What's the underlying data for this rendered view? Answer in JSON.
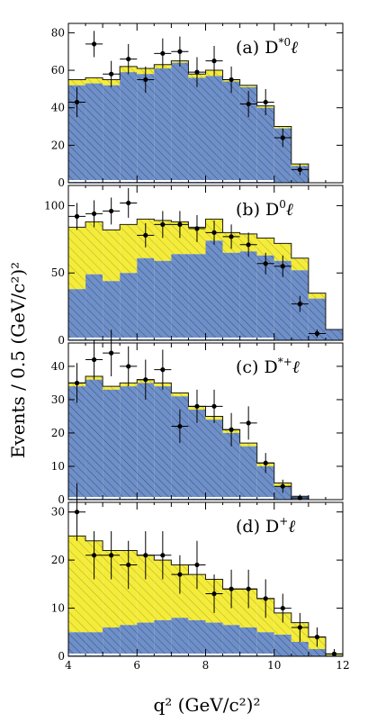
{
  "figure": {
    "ylabel": "Events / 0.5 (GeV/c²)²",
    "xlabel": "q² (GeV/c²)²",
    "colors": {
      "blue_fill": "#6f8fc8",
      "yellow_fill": "#f4ec3a",
      "hatch_line": "#34507a",
      "background": "#ffffff",
      "frame": "#000000"
    }
  },
  "chart_data": [
    {
      "type": "bar",
      "label": "(a) D*⁰ℓ",
      "label_main": "(a) D",
      "label_sup": "*0",
      "label_tail": "ℓ",
      "xlim": [
        4,
        12
      ],
      "ylim": [
        0,
        85
      ],
      "yticks": [
        0,
        20,
        40,
        60,
        80
      ],
      "bin_edges": [
        4.0,
        4.5,
        5.0,
        5.5,
        6.0,
        6.5,
        7.0,
        7.5,
        8.0,
        8.5,
        9.0,
        9.5,
        10.0,
        10.5,
        11.0
      ],
      "blue": [
        52,
        53,
        52,
        59,
        58,
        61,
        64,
        56,
        57,
        54,
        51,
        40,
        29,
        9
      ],
      "yellow_top": [
        55,
        56,
        55,
        62,
        61,
        63,
        65,
        58,
        60,
        55,
        52,
        41,
        30,
        10
      ],
      "data_points": [
        {
          "x": 4.25,
          "y": 43,
          "err": 8
        },
        {
          "x": 4.75,
          "y": 74,
          "err": 7
        },
        {
          "x": 5.25,
          "y": 58,
          "err": 7
        },
        {
          "x": 5.75,
          "y": 66,
          "err": 8
        },
        {
          "x": 6.25,
          "y": 55,
          "err": 7
        },
        {
          "x": 6.75,
          "y": 69,
          "err": 8
        },
        {
          "x": 7.25,
          "y": 70,
          "err": 8
        },
        {
          "x": 7.75,
          "y": 59,
          "err": 8
        },
        {
          "x": 8.25,
          "y": 65,
          "err": 8
        },
        {
          "x": 8.75,
          "y": 55,
          "err": 7
        },
        {
          "x": 9.25,
          "y": 42,
          "err": 7
        },
        {
          "x": 9.75,
          "y": 43,
          "err": 7
        },
        {
          "x": 10.25,
          "y": 24,
          "err": 5
        },
        {
          "x": 10.75,
          "y": 7,
          "err": 3
        }
      ]
    },
    {
      "type": "bar",
      "label": "(b) D⁰ℓ",
      "label_main": "(b) D",
      "label_sup": "0",
      "label_tail": "ℓ",
      "xlim": [
        4,
        12
      ],
      "ylim": [
        0,
        115
      ],
      "yticks": [
        0,
        50,
        100
      ],
      "bin_edges": [
        4.0,
        4.5,
        5.0,
        5.5,
        6.0,
        6.5,
        7.0,
        7.5,
        8.0,
        8.5,
        9.0,
        9.5,
        10.0,
        10.5,
        11.0,
        11.5,
        12.0
      ],
      "blue": [
        38,
        49,
        44,
        50,
        61,
        59,
        64,
        64,
        74,
        65,
        66,
        63,
        59,
        52,
        31,
        8
      ],
      "yellow_top": [
        84,
        88,
        82,
        86,
        90,
        89,
        88,
        84,
        90,
        80,
        79,
        76,
        72,
        61,
        35,
        8
      ],
      "data_points": [
        {
          "x": 4.25,
          "y": 92,
          "err": 10
        },
        {
          "x": 4.75,
          "y": 94,
          "err": 10
        },
        {
          "x": 5.25,
          "y": 96,
          "err": 10
        },
        {
          "x": 5.75,
          "y": 102,
          "err": 11
        },
        {
          "x": 6.25,
          "y": 78,
          "err": 9
        },
        {
          "x": 6.75,
          "y": 86,
          "err": 10
        },
        {
          "x": 7.25,
          "y": 86,
          "err": 10
        },
        {
          "x": 7.75,
          "y": 83,
          "err": 10
        },
        {
          "x": 8.25,
          "y": 80,
          "err": 9
        },
        {
          "x": 8.75,
          "y": 77,
          "err": 9
        },
        {
          "x": 9.25,
          "y": 71,
          "err": 9
        },
        {
          "x": 9.75,
          "y": 57,
          "err": 8
        },
        {
          "x": 10.25,
          "y": 55,
          "err": 8
        },
        {
          "x": 10.75,
          "y": 27,
          "err": 6
        },
        {
          "x": 11.25,
          "y": 5,
          "err": 3
        }
      ]
    },
    {
      "type": "bar",
      "label": "(c) D*⁺ℓ",
      "label_main": "(c) D",
      "label_sup": "*+",
      "label_tail": "ℓ",
      "xlim": [
        4,
        12
      ],
      "ylim": [
        0,
        47
      ],
      "yticks": [
        0,
        10,
        20,
        30,
        40
      ],
      "bin_edges": [
        4.0,
        4.5,
        5.0,
        5.5,
        6.0,
        6.5,
        7.0,
        7.5,
        8.0,
        8.5,
        9.0,
        9.5,
        10.0,
        10.5,
        11.0
      ],
      "blue": [
        34,
        36,
        33,
        34,
        35,
        34,
        31,
        27,
        24,
        20,
        16,
        10,
        4,
        1
      ],
      "yellow_top": [
        35,
        37,
        34,
        35,
        36,
        35,
        32,
        28,
        25,
        21,
        17,
        11,
        5,
        1
      ],
      "data_points": [
        {
          "x": 4.25,
          "y": 35,
          "err": 6
        },
        {
          "x": 4.75,
          "y": 42,
          "err": 6
        },
        {
          "x": 5.25,
          "y": 44,
          "err": 7
        },
        {
          "x": 5.75,
          "y": 40,
          "err": 6
        },
        {
          "x": 6.25,
          "y": 36,
          "err": 6
        },
        {
          "x": 6.75,
          "y": 39,
          "err": 6
        },
        {
          "x": 7.25,
          "y": 22,
          "err": 5
        },
        {
          "x": 7.75,
          "y": 28,
          "err": 5
        },
        {
          "x": 8.25,
          "y": 28,
          "err": 5
        },
        {
          "x": 8.75,
          "y": 21,
          "err": 5
        },
        {
          "x": 9.25,
          "y": 23,
          "err": 5
        },
        {
          "x": 9.75,
          "y": 11,
          "err": 3
        },
        {
          "x": 10.25,
          "y": 4,
          "err": 2
        },
        {
          "x": 10.75,
          "y": 0.5,
          "err": 1
        }
      ]
    },
    {
      "type": "bar",
      "label": "(d) D⁺ℓ",
      "label_main": "(d) D",
      "label_sup": "+",
      "label_tail": "ℓ",
      "xlim": [
        4,
        12
      ],
      "ylim": [
        0,
        32
      ],
      "yticks": [
        0,
        10,
        20,
        30
      ],
      "xticks": [
        4,
        6,
        8,
        10,
        12
      ],
      "bin_edges": [
        4.0,
        4.5,
        5.0,
        5.5,
        6.0,
        6.5,
        7.0,
        7.5,
        8.0,
        8.5,
        9.0,
        9.5,
        10.0,
        10.5,
        11.0,
        11.5,
        12.0
      ],
      "blue": [
        5,
        5,
        6,
        6.5,
        7,
        7.5,
        8,
        7.5,
        7,
        6.5,
        6,
        5,
        4.5,
        3,
        1.5,
        0.2
      ],
      "yellow_top": [
        25,
        24,
        22,
        22,
        21,
        20,
        19,
        17,
        16,
        14,
        14,
        12,
        9,
        7,
        4,
        0.5
      ],
      "data_points": [
        {
          "x": 4.25,
          "y": 30,
          "err": 6
        },
        {
          "x": 4.75,
          "y": 21,
          "err": 5
        },
        {
          "x": 5.25,
          "y": 21,
          "err": 5
        },
        {
          "x": 5.75,
          "y": 19,
          "err": 5
        },
        {
          "x": 6.25,
          "y": 21,
          "err": 5
        },
        {
          "x": 6.75,
          "y": 21,
          "err": 5
        },
        {
          "x": 7.25,
          "y": 17,
          "err": 4
        },
        {
          "x": 7.75,
          "y": 19,
          "err": 5
        },
        {
          "x": 8.25,
          "y": 13,
          "err": 4
        },
        {
          "x": 8.75,
          "y": 14,
          "err": 4
        },
        {
          "x": 9.25,
          "y": 14,
          "err": 4
        },
        {
          "x": 9.75,
          "y": 12,
          "err": 4
        },
        {
          "x": 10.25,
          "y": 10,
          "err": 3
        },
        {
          "x": 10.75,
          "y": 6,
          "err": 3
        },
        {
          "x": 11.25,
          "y": 4,
          "err": 2
        },
        {
          "x": 11.75,
          "y": 0.5,
          "err": 1
        }
      ]
    }
  ]
}
